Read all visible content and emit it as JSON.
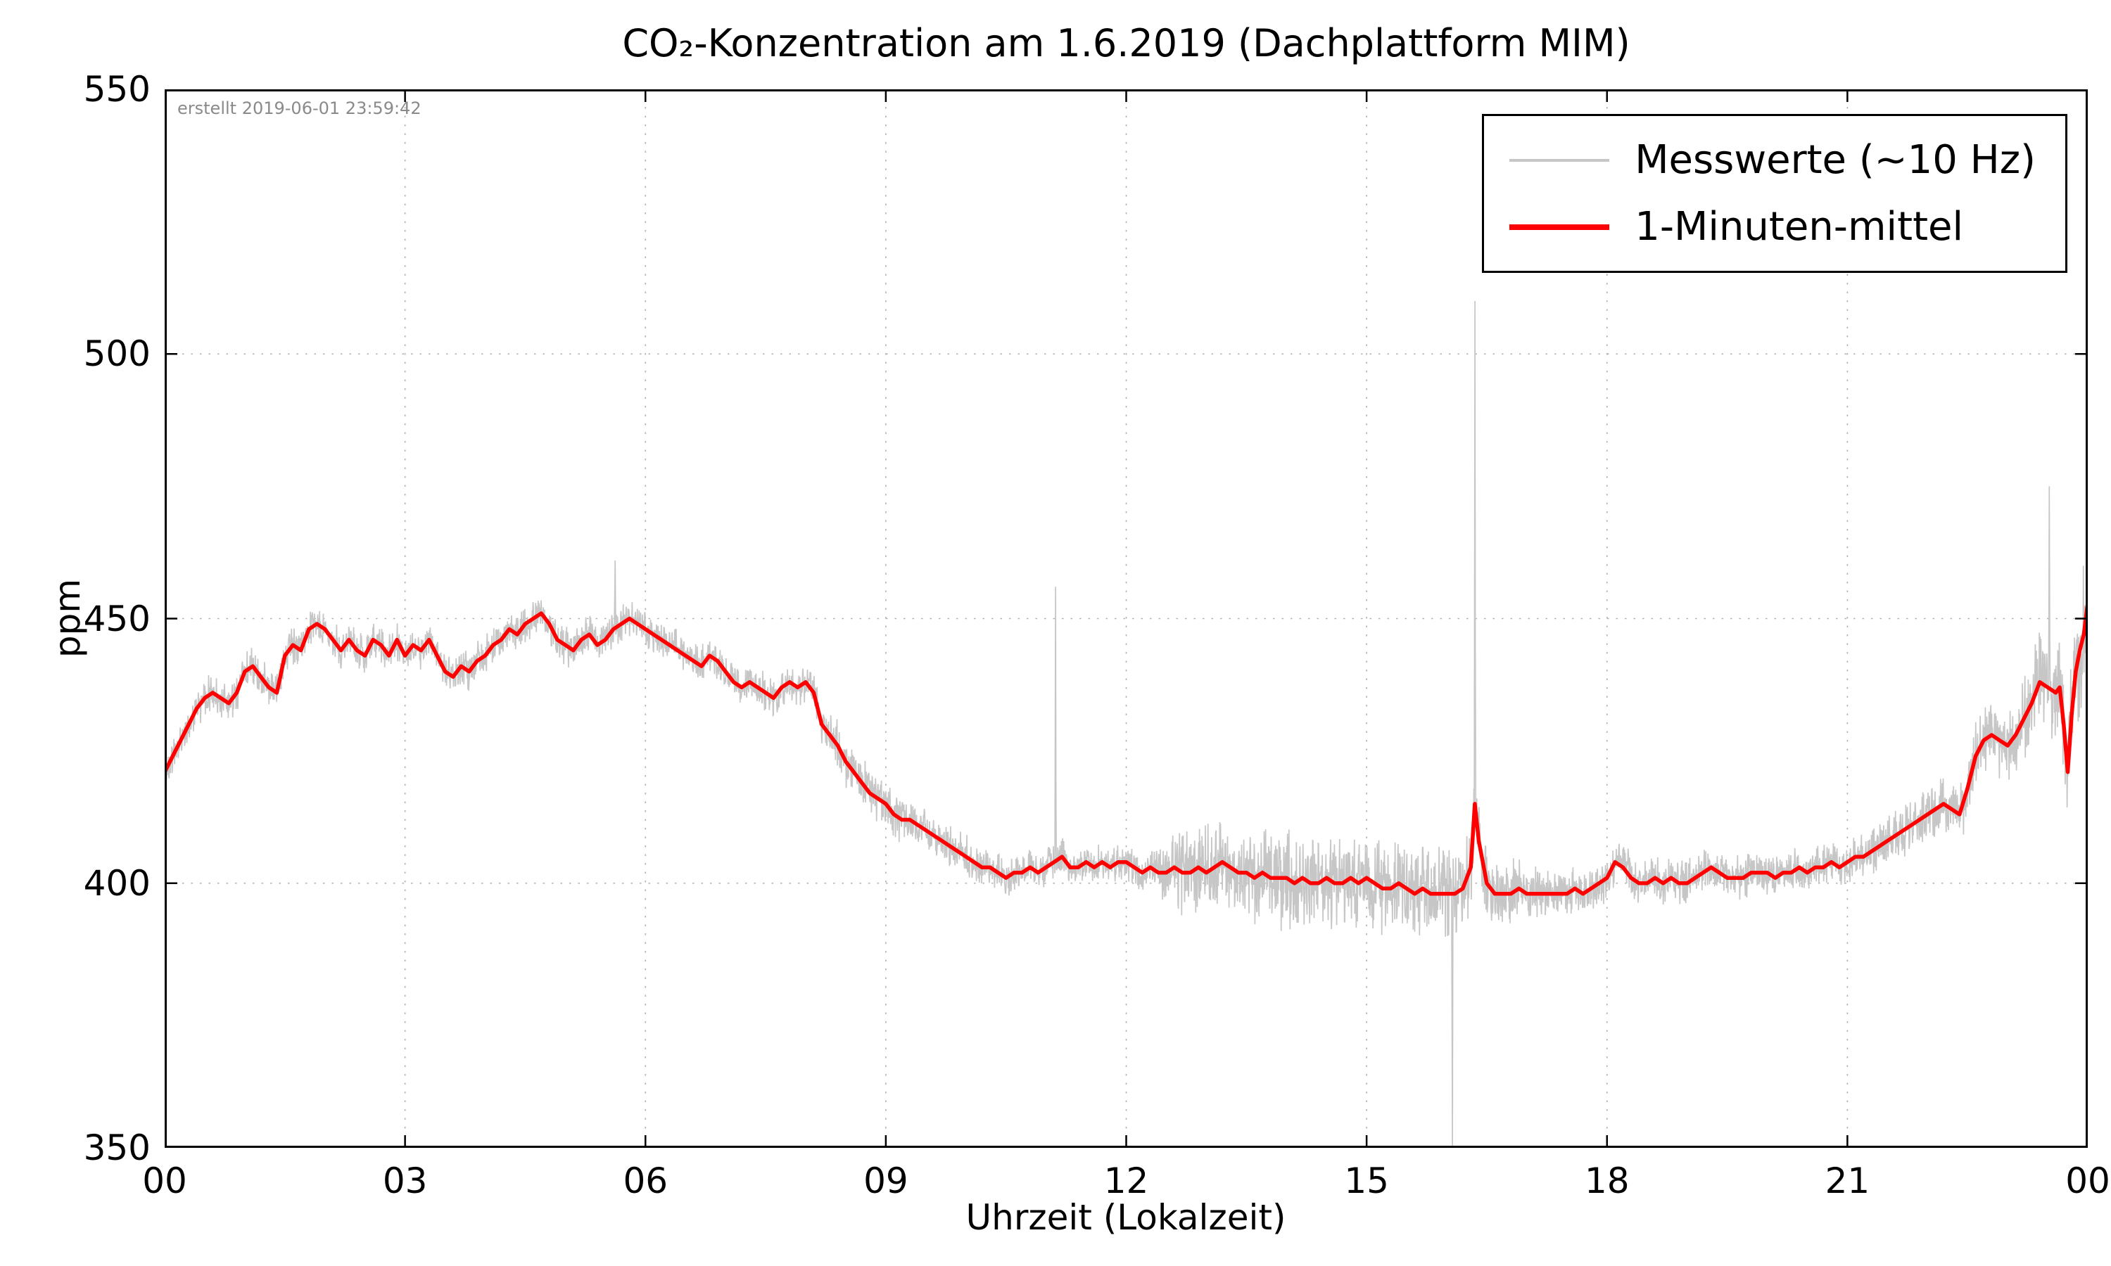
{
  "chart_data": {
    "type": "line",
    "title": "CO₂-Konzentration am 1.6.2019 (Dachplattform MIM)",
    "xlabel": "Uhrzeit (Lokalzeit)",
    "ylabel": "ppm",
    "annotation": "erstellt 2019-06-01 23:59:42",
    "xlim": [
      0,
      24
    ],
    "ylim": [
      350,
      550
    ],
    "xticks": {
      "values": [
        0,
        3,
        6,
        9,
        12,
        15,
        18,
        21,
        24
      ],
      "labels": [
        "00",
        "03",
        "06",
        "09",
        "12",
        "15",
        "18",
        "21",
        "00"
      ]
    },
    "yticks": [
      350,
      400,
      450,
      500,
      550
    ],
    "grid": "dotted",
    "legend_position": "upper right",
    "series": [
      {
        "name": "Messwerte (~10 Hz)",
        "color": "#c6c6c6",
        "type": "high-frequency measurements scattered around the 1-minute mean",
        "noise_halfwidth_ppm": [
          [
            0,
            3.5
          ],
          [
            8,
            3.5
          ],
          [
            8.3,
            4.5
          ],
          [
            9.5,
            4
          ],
          [
            10.5,
            3.5
          ],
          [
            12,
            3.5
          ],
          [
            12.4,
            4
          ],
          [
            12.7,
            8
          ],
          [
            13,
            9
          ],
          [
            14,
            9
          ],
          [
            15,
            8.5
          ],
          [
            16,
            9
          ],
          [
            16.5,
            7
          ],
          [
            17,
            5
          ],
          [
            17.5,
            4.5
          ],
          [
            19,
            4
          ],
          [
            21,
            4
          ],
          [
            21.5,
            4.5
          ],
          [
            22.2,
            5
          ],
          [
            22.5,
            6
          ],
          [
            23,
            7
          ],
          [
            23.4,
            9
          ],
          [
            23.7,
            10
          ],
          [
            23.9,
            13
          ],
          [
            24,
            14
          ]
        ],
        "spikes": [
          [
            5.62,
            461
          ],
          [
            11.12,
            456
          ],
          [
            16.07,
            350
          ],
          [
            16.35,
            510
          ],
          [
            23.52,
            475
          ]
        ]
      },
      {
        "name": "1-Minuten-mittel",
        "color": "#ff0000",
        "points": [
          [
            0.0,
            421
          ],
          [
            0.1,
            424
          ],
          [
            0.2,
            427
          ],
          [
            0.3,
            430
          ],
          [
            0.4,
            433
          ],
          [
            0.5,
            435
          ],
          [
            0.6,
            436
          ],
          [
            0.7,
            435
          ],
          [
            0.8,
            434
          ],
          [
            0.9,
            436
          ],
          [
            1.0,
            440
          ],
          [
            1.1,
            441
          ],
          [
            1.2,
            439
          ],
          [
            1.3,
            437
          ],
          [
            1.4,
            436
          ],
          [
            1.5,
            443
          ],
          [
            1.6,
            445
          ],
          [
            1.7,
            444
          ],
          [
            1.8,
            448
          ],
          [
            1.9,
            449
          ],
          [
            2.0,
            448
          ],
          [
            2.1,
            446
          ],
          [
            2.2,
            444
          ],
          [
            2.3,
            446
          ],
          [
            2.4,
            444
          ],
          [
            2.5,
            443
          ],
          [
            2.6,
            446
          ],
          [
            2.7,
            445
          ],
          [
            2.8,
            443
          ],
          [
            2.9,
            446
          ],
          [
            3.0,
            443
          ],
          [
            3.1,
            445
          ],
          [
            3.2,
            444
          ],
          [
            3.3,
            446
          ],
          [
            3.4,
            443
          ],
          [
            3.5,
            440
          ],
          [
            3.6,
            439
          ],
          [
            3.7,
            441
          ],
          [
            3.8,
            440
          ],
          [
            3.9,
            442
          ],
          [
            4.0,
            443
          ],
          [
            4.1,
            445
          ],
          [
            4.2,
            446
          ],
          [
            4.3,
            448
          ],
          [
            4.4,
            447
          ],
          [
            4.5,
            449
          ],
          [
            4.6,
            450
          ],
          [
            4.7,
            451
          ],
          [
            4.8,
            449
          ],
          [
            4.9,
            446
          ],
          [
            5.0,
            445
          ],
          [
            5.1,
            444
          ],
          [
            5.2,
            446
          ],
          [
            5.3,
            447
          ],
          [
            5.4,
            445
          ],
          [
            5.5,
            446
          ],
          [
            5.6,
            448
          ],
          [
            5.7,
            449
          ],
          [
            5.8,
            450
          ],
          [
            5.9,
            449
          ],
          [
            6.0,
            448
          ],
          [
            6.1,
            447
          ],
          [
            6.2,
            446
          ],
          [
            6.3,
            445
          ],
          [
            6.4,
            444
          ],
          [
            6.5,
            443
          ],
          [
            6.6,
            442
          ],
          [
            6.7,
            441
          ],
          [
            6.8,
            443
          ],
          [
            6.9,
            442
          ],
          [
            7.0,
            440
          ],
          [
            7.1,
            438
          ],
          [
            7.2,
            437
          ],
          [
            7.3,
            438
          ],
          [
            7.4,
            437
          ],
          [
            7.5,
            436
          ],
          [
            7.6,
            435
          ],
          [
            7.7,
            437
          ],
          [
            7.8,
            438
          ],
          [
            7.9,
            437
          ],
          [
            8.0,
            438
          ],
          [
            8.1,
            436
          ],
          [
            8.2,
            430
          ],
          [
            8.3,
            428
          ],
          [
            8.4,
            426
          ],
          [
            8.5,
            423
          ],
          [
            8.6,
            421
          ],
          [
            8.7,
            419
          ],
          [
            8.8,
            417
          ],
          [
            8.9,
            416
          ],
          [
            9.0,
            415
          ],
          [
            9.1,
            413
          ],
          [
            9.2,
            412
          ],
          [
            9.3,
            412
          ],
          [
            9.4,
            411
          ],
          [
            9.5,
            410
          ],
          [
            9.6,
            409
          ],
          [
            9.7,
            408
          ],
          [
            9.8,
            407
          ],
          [
            9.9,
            406
          ],
          [
            10.0,
            405
          ],
          [
            10.1,
            404
          ],
          [
            10.2,
            403
          ],
          [
            10.3,
            403
          ],
          [
            10.4,
            402
          ],
          [
            10.5,
            401
          ],
          [
            10.6,
            402
          ],
          [
            10.7,
            402
          ],
          [
            10.8,
            403
          ],
          [
            10.9,
            402
          ],
          [
            11.0,
            403
          ],
          [
            11.1,
            404
          ],
          [
            11.2,
            405
          ],
          [
            11.3,
            403
          ],
          [
            11.4,
            403
          ],
          [
            11.5,
            404
          ],
          [
            11.6,
            403
          ],
          [
            11.7,
            404
          ],
          [
            11.8,
            403
          ],
          [
            11.9,
            404
          ],
          [
            12.0,
            404
          ],
          [
            12.1,
            403
          ],
          [
            12.2,
            402
          ],
          [
            12.3,
            403
          ],
          [
            12.4,
            402
          ],
          [
            12.5,
            402
          ],
          [
            12.6,
            403
          ],
          [
            12.7,
            402
          ],
          [
            12.8,
            402
          ],
          [
            12.9,
            403
          ],
          [
            13.0,
            402
          ],
          [
            13.1,
            403
          ],
          [
            13.2,
            404
          ],
          [
            13.3,
            403
          ],
          [
            13.4,
            402
          ],
          [
            13.5,
            402
          ],
          [
            13.6,
            401
          ],
          [
            13.7,
            402
          ],
          [
            13.8,
            401
          ],
          [
            13.9,
            401
          ],
          [
            14.0,
            401
          ],
          [
            14.1,
            400
          ],
          [
            14.2,
            401
          ],
          [
            14.3,
            400
          ],
          [
            14.4,
            400
          ],
          [
            14.5,
            401
          ],
          [
            14.6,
            400
          ],
          [
            14.7,
            400
          ],
          [
            14.8,
            401
          ],
          [
            14.9,
            400
          ],
          [
            15.0,
            401
          ],
          [
            15.1,
            400
          ],
          [
            15.2,
            399
          ],
          [
            15.3,
            399
          ],
          [
            15.4,
            400
          ],
          [
            15.5,
            399
          ],
          [
            15.6,
            398
          ],
          [
            15.7,
            399
          ],
          [
            15.8,
            398
          ],
          [
            15.9,
            398
          ],
          [
            16.0,
            398
          ],
          [
            16.1,
            398
          ],
          [
            16.2,
            399
          ],
          [
            16.3,
            403
          ],
          [
            16.35,
            415
          ],
          [
            16.4,
            408
          ],
          [
            16.5,
            400
          ],
          [
            16.6,
            398
          ],
          [
            16.7,
            398
          ],
          [
            16.8,
            398
          ],
          [
            16.9,
            399
          ],
          [
            17.0,
            398
          ],
          [
            17.1,
            398
          ],
          [
            17.2,
            398
          ],
          [
            17.3,
            398
          ],
          [
            17.4,
            398
          ],
          [
            17.5,
            398
          ],
          [
            17.6,
            399
          ],
          [
            17.7,
            398
          ],
          [
            17.8,
            399
          ],
          [
            17.9,
            400
          ],
          [
            18.0,
            401
          ],
          [
            18.1,
            404
          ],
          [
            18.2,
            403
          ],
          [
            18.3,
            401
          ],
          [
            18.4,
            400
          ],
          [
            18.5,
            400
          ],
          [
            18.6,
            401
          ],
          [
            18.7,
            400
          ],
          [
            18.8,
            401
          ],
          [
            18.9,
            400
          ],
          [
            19.0,
            400
          ],
          [
            19.1,
            401
          ],
          [
            19.2,
            402
          ],
          [
            19.3,
            403
          ],
          [
            19.4,
            402
          ],
          [
            19.5,
            401
          ],
          [
            19.6,
            401
          ],
          [
            19.7,
            401
          ],
          [
            19.8,
            402
          ],
          [
            19.9,
            402
          ],
          [
            20.0,
            402
          ],
          [
            20.1,
            401
          ],
          [
            20.2,
            402
          ],
          [
            20.3,
            402
          ],
          [
            20.4,
            403
          ],
          [
            20.5,
            402
          ],
          [
            20.6,
            403
          ],
          [
            20.7,
            403
          ],
          [
            20.8,
            404
          ],
          [
            20.9,
            403
          ],
          [
            21.0,
            404
          ],
          [
            21.1,
            405
          ],
          [
            21.2,
            405
          ],
          [
            21.3,
            406
          ],
          [
            21.4,
            407
          ],
          [
            21.5,
            408
          ],
          [
            21.6,
            409
          ],
          [
            21.7,
            410
          ],
          [
            21.8,
            411
          ],
          [
            21.9,
            412
          ],
          [
            22.0,
            413
          ],
          [
            22.1,
            414
          ],
          [
            22.2,
            415
          ],
          [
            22.3,
            414
          ],
          [
            22.4,
            413
          ],
          [
            22.5,
            418
          ],
          [
            22.6,
            424
          ],
          [
            22.7,
            427
          ],
          [
            22.8,
            428
          ],
          [
            22.9,
            427
          ],
          [
            23.0,
            426
          ],
          [
            23.1,
            428
          ],
          [
            23.2,
            431
          ],
          [
            23.3,
            434
          ],
          [
            23.4,
            438
          ],
          [
            23.5,
            437
          ],
          [
            23.6,
            436
          ],
          [
            23.65,
            437
          ],
          [
            23.7,
            430
          ],
          [
            23.75,
            421
          ],
          [
            23.8,
            432
          ],
          [
            23.85,
            440
          ],
          [
            23.9,
            444
          ],
          [
            23.95,
            447
          ],
          [
            24.0,
            453
          ]
        ]
      }
    ]
  }
}
